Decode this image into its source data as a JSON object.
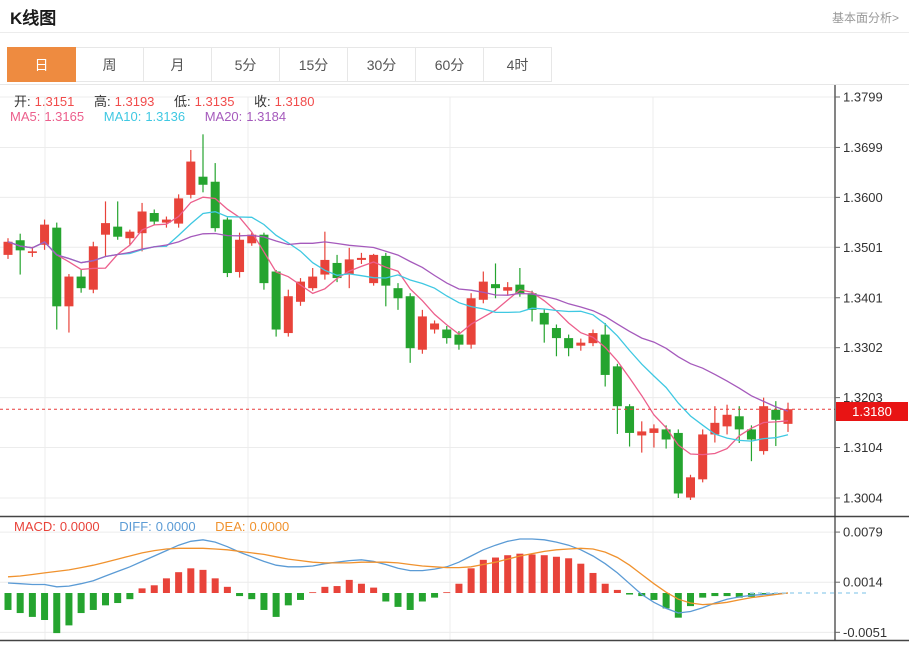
{
  "header": {
    "title": "K线图",
    "link": "基本面分析>"
  },
  "tabs": {
    "items": [
      "日",
      "周",
      "月",
      "5分",
      "15分",
      "30分",
      "60分",
      "4时"
    ],
    "active_index": 0
  },
  "readouts": {
    "ohlc": {
      "open_label": "开:",
      "open": "1.3151",
      "high_label": "高:",
      "high": "1.3193",
      "low_label": "低:",
      "low": "1.3135",
      "close_label": "收:",
      "close": "1.3180"
    },
    "ma": {
      "ma5_label": "MA5:",
      "ma5": "1.3165",
      "ma10_label": "MA10:",
      "ma10": "1.3136",
      "ma20_label": "MA20:",
      "ma20": "1.3184"
    },
    "macd": {
      "macd_label": "MACD:",
      "macd": "0.0000",
      "diff_label": "DIFF:",
      "diff": "0.0000",
      "dea_label": "DEA:",
      "dea": "0.0000"
    }
  },
  "axis": {
    "price_ticks": [
      "1.3799",
      "1.3699",
      "1.3600",
      "1.3501",
      "1.3401",
      "1.3302",
      "1.3203",
      "1.3104",
      "1.3004"
    ],
    "macd_ticks": [
      "0.0079",
      "0.0014",
      "-0.0051"
    ],
    "current_price": "1.3180"
  },
  "colors": {
    "up": "#e8433a",
    "down": "#25a42f",
    "ma5": "#ec5f8c",
    "ma10": "#3fc8e2",
    "ma20": "#a55abc",
    "diff": "#5b9bd5",
    "dea": "#f0922e",
    "macd_text": "#e8433a",
    "value_red": "#f14b4b",
    "badge_bg": "#e81414",
    "tab_active": "#ee8b40",
    "grid": "#ececec",
    "axis_line": "#333333",
    "separator": "#444444",
    "price_dash": "#e83a3a",
    "zero_dash": "#a6d6ef",
    "label_text": "#333333"
  },
  "chart_data": {
    "type": "candlestick+macd",
    "title": "K线图 日线",
    "price_ylim": [
      1.3004,
      1.3799
    ],
    "macd_ylim": [
      -0.0051,
      0.0079
    ],
    "current_price": 1.318,
    "ma_periods": [
      5,
      10,
      20
    ],
    "grid": true,
    "candles_ohlc": [
      [
        1.3486,
        1.3519,
        1.3478,
        1.3512
      ],
      [
        1.3515,
        1.3528,
        1.3447,
        1.3495
      ],
      [
        1.349,
        1.3502,
        1.3482,
        1.3493
      ],
      [
        1.3506,
        1.3556,
        1.3496,
        1.3546
      ],
      [
        1.354,
        1.355,
        1.3338,
        1.3384
      ],
      [
        1.3384,
        1.3448,
        1.3332,
        1.3443
      ],
      [
        1.3443,
        1.3457,
        1.3411,
        1.342
      ],
      [
        1.3417,
        1.3512,
        1.341,
        1.3503
      ],
      [
        1.3526,
        1.3592,
        1.3483,
        1.3549
      ],
      [
        1.3542,
        1.3592,
        1.3516,
        1.3522
      ],
      [
        1.3519,
        1.3536,
        1.3506,
        1.3532
      ],
      [
        1.3529,
        1.3589,
        1.3493,
        1.3572
      ],
      [
        1.3569,
        1.3576,
        1.3546,
        1.3552
      ],
      [
        1.355,
        1.3562,
        1.354,
        1.3556
      ],
      [
        1.3548,
        1.3606,
        1.354,
        1.3598
      ],
      [
        1.3605,
        1.3694,
        1.3598,
        1.3671
      ],
      [
        1.3641,
        1.3725,
        1.361,
        1.3625
      ],
      [
        1.3631,
        1.3668,
        1.3532,
        1.3539
      ],
      [
        1.3556,
        1.356,
        1.3442,
        1.345
      ],
      [
        1.3452,
        1.353,
        1.3441,
        1.3516
      ],
      [
        1.3509,
        1.353,
        1.3504,
        1.3526
      ],
      [
        1.3526,
        1.353,
        1.3417,
        1.343
      ],
      [
        1.3453,
        1.3456,
        1.3324,
        1.3338
      ],
      [
        1.3331,
        1.3417,
        1.3324,
        1.3404
      ],
      [
        1.3393,
        1.344,
        1.3385,
        1.3433
      ],
      [
        1.342,
        1.346,
        1.3415,
        1.3443
      ],
      [
        1.3447,
        1.3532,
        1.3437,
        1.3476
      ],
      [
        1.347,
        1.3486,
        1.3432,
        1.344
      ],
      [
        1.3447,
        1.35,
        1.342,
        1.3477
      ],
      [
        1.3476,
        1.349,
        1.3468,
        1.348
      ],
      [
        1.343,
        1.3488,
        1.3425,
        1.3486
      ],
      [
        1.3484,
        1.349,
        1.3384,
        1.3425
      ],
      [
        1.342,
        1.343,
        1.3377,
        1.34
      ],
      [
        1.3404,
        1.341,
        1.3272,
        1.3301
      ],
      [
        1.3298,
        1.3377,
        1.329,
        1.3364
      ],
      [
        1.3338,
        1.3356,
        1.333,
        1.335
      ],
      [
        1.3338,
        1.3345,
        1.331,
        1.3321
      ],
      [
        1.3328,
        1.3335,
        1.3298,
        1.3308
      ],
      [
        1.3308,
        1.341,
        1.33,
        1.34
      ],
      [
        1.3397,
        1.3453,
        1.339,
        1.3433
      ],
      [
        1.3428,
        1.3469,
        1.34,
        1.342
      ],
      [
        1.3415,
        1.3432,
        1.3405,
        1.3422
      ],
      [
        1.3427,
        1.346,
        1.3403,
        1.3408
      ],
      [
        1.341,
        1.3415,
        1.3354,
        1.3377
      ],
      [
        1.3371,
        1.3378,
        1.3312,
        1.3348
      ],
      [
        1.3341,
        1.3348,
        1.3285,
        1.3321
      ],
      [
        1.3321,
        1.3328,
        1.3285,
        1.3301
      ],
      [
        1.3306,
        1.332,
        1.3296,
        1.3312
      ],
      [
        1.3311,
        1.3338,
        1.3305,
        1.3331
      ],
      [
        1.3328,
        1.3351,
        1.3225,
        1.3248
      ],
      [
        1.3265,
        1.327,
        1.3131,
        1.3186
      ],
      [
        1.3186,
        1.319,
        1.3106,
        1.3133
      ],
      [
        1.3128,
        1.3156,
        1.3094,
        1.3136
      ],
      [
        1.3133,
        1.315,
        1.3104,
        1.3142
      ],
      [
        1.314,
        1.3148,
        1.3102,
        1.312
      ],
      [
        1.3133,
        1.314,
        1.3004,
        1.3013
      ],
      [
        1.3005,
        1.305,
        1.3,
        1.3045
      ],
      [
        1.3041,
        1.314,
        1.3035,
        1.313
      ],
      [
        1.313,
        1.3186,
        1.3114,
        1.3153
      ],
      [
        1.3146,
        1.3189,
        1.313,
        1.3169
      ],
      [
        1.3166,
        1.3186,
        1.3113,
        1.314
      ],
      [
        1.314,
        1.3148,
        1.3077,
        1.312
      ],
      [
        1.3097,
        1.3203,
        1.309,
        1.3186
      ],
      [
        1.3179,
        1.3196,
        1.3107,
        1.3159
      ],
      [
        1.3151,
        1.3193,
        1.3135,
        1.318
      ]
    ],
    "macd_hist": [
      -0.0022,
      -0.0026,
      -0.0031,
      -0.0035,
      -0.0052,
      -0.0042,
      -0.0026,
      -0.0022,
      -0.0016,
      -0.0013,
      -0.0008,
      0.0006,
      0.001,
      0.0019,
      0.0027,
      0.0032,
      0.003,
      0.0019,
      0.0008,
      -0.0004,
      -0.0008,
      -0.0022,
      -0.0031,
      -0.0016,
      -0.0009,
      0.0001,
      0.0008,
      0.0009,
      0.0017,
      0.0012,
      0.0007,
      -0.0011,
      -0.0018,
      -0.0022,
      -0.0011,
      -0.0006,
      0.0001,
      0.0012,
      0.0032,
      0.0043,
      0.0046,
      0.0049,
      0.0051,
      0.005,
      0.0049,
      0.0047,
      0.0045,
      0.0038,
      0.0026,
      0.0012,
      0.0004,
      -0.0002,
      -0.0004,
      -0.0009,
      -0.002,
      -0.0032,
      -0.0017,
      -0.0006,
      -0.0004,
      -0.0004,
      -0.0006,
      -0.0005,
      -0.0002,
      -0.0001,
      0.0
    ],
    "diff_line": [
      0.0013,
      0.0012,
      0.0011,
      0.0011,
      0.0008,
      0.0009,
      0.0012,
      0.0016,
      0.0022,
      0.0028,
      0.0034,
      0.0041,
      0.0048,
      0.0055,
      0.0062,
      0.0067,
      0.0069,
      0.0066,
      0.006,
      0.0053,
      0.0047,
      0.0041,
      0.0036,
      0.0034,
      0.0034,
      0.0035,
      0.0038,
      0.004,
      0.0042,
      0.0043,
      0.0041,
      0.0037,
      0.0032,
      0.0029,
      0.0029,
      0.0031,
      0.0034,
      0.004,
      0.0048,
      0.0056,
      0.0062,
      0.0067,
      0.007,
      0.007,
      0.0069,
      0.0066,
      0.0062,
      0.0056,
      0.0048,
      0.0038,
      0.0026,
      0.0012,
      -0.0002,
      -0.0012,
      -0.002,
      -0.0026,
      -0.0024,
      -0.0019,
      -0.0013,
      -0.0008,
      -0.0005,
      -0.0003,
      -0.0002,
      -0.0001,
      0.0
    ],
    "dea_line": [
      0.0021,
      0.0022,
      0.0024,
      0.0026,
      0.0028,
      0.003,
      0.0033,
      0.0036,
      0.004,
      0.0044,
      0.0048,
      0.0052,
      0.0055,
      0.0057,
      0.0058,
      0.0058,
      0.0058,
      0.0057,
      0.0056,
      0.0054,
      0.0052,
      0.005,
      0.0047,
      0.0044,
      0.0042,
      0.004,
      0.0039,
      0.0039,
      0.0039,
      0.004,
      0.004,
      0.004,
      0.0039,
      0.0037,
      0.0035,
      0.0034,
      0.0033,
      0.0033,
      0.0034,
      0.0037,
      0.004,
      0.0044,
      0.0048,
      0.0051,
      0.0054,
      0.0056,
      0.0057,
      0.0058,
      0.0057,
      0.0053,
      0.0046,
      0.0036,
      0.0024,
      0.0012,
      0.0001,
      -0.0008,
      -0.0013,
      -0.0015,
      -0.0014,
      -0.0012,
      -0.0009,
      -0.0006,
      -0.0004,
      -0.0002,
      0.0
    ]
  }
}
